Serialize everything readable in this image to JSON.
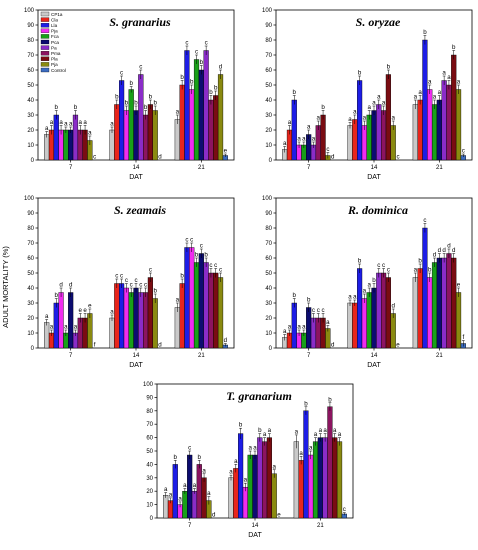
{
  "figure": {
    "y_axis_label": "ADULT MORTALITY (%)"
  },
  "legend_entries": [
    {
      "name": "CP1a",
      "color": "#c9c9c9"
    },
    {
      "name": "Cla",
      "color": "#e8251c"
    },
    {
      "name": "Lla",
      "color": "#1d1de6"
    },
    {
      "name": "Pja",
      "color": "#f02cf0"
    },
    {
      "name": "Fca",
      "color": "#18a018"
    },
    {
      "name": "Pca",
      "color": "#0c0c70"
    },
    {
      "name": "Pa",
      "color": "#8a2cc8"
    },
    {
      "name": "Pma",
      "color": "#8c1460"
    },
    {
      "name": "Pla",
      "color": "#7a0c12"
    },
    {
      "name": "Pja",
      "color": "#8a8a10"
    },
    {
      "name": "Control",
      "color": "#3c6cc0"
    }
  ],
  "chart_data": [
    {
      "type": "bar",
      "title": "S. granarius",
      "xlabel": "DAT",
      "ylabel": "",
      "categories": [
        "7",
        "14",
        "21"
      ],
      "ylim": [
        0,
        100
      ],
      "yticks": [
        0,
        10,
        20,
        30,
        40,
        50,
        60,
        70,
        80,
        90,
        100
      ],
      "values": [
        [
          17,
          20,
          30,
          20,
          20,
          20,
          30,
          20,
          20,
          13,
          0
        ],
        [
          20,
          37,
          53,
          33,
          47,
          33,
          57,
          30,
          37,
          33,
          0
        ],
        [
          27,
          50,
          73,
          47,
          67,
          60,
          73,
          40,
          43,
          57,
          3
        ]
      ],
      "errors": [
        [
          2,
          3,
          3,
          3,
          2,
          2,
          3,
          3,
          3,
          3,
          0
        ],
        [
          2,
          3,
          3,
          3,
          2,
          3,
          3,
          3,
          3,
          3,
          0
        ],
        [
          3,
          3,
          3,
          3,
          3,
          3,
          3,
          3,
          3,
          3,
          1
        ]
      ],
      "letters": [
        [
          "a",
          "a",
          "b",
          "a",
          "a",
          "a",
          "b",
          "a",
          "a",
          "a",
          "c"
        ],
        [
          "a",
          "b",
          "c",
          "b",
          "b",
          "b",
          "c",
          "b",
          "b",
          "b",
          "d"
        ],
        [
          "a",
          "b",
          "c",
          "b",
          "c",
          "b",
          "c",
          "b",
          "b",
          "d",
          "e"
        ]
      ]
    },
    {
      "type": "bar",
      "title": "S. oryzae",
      "xlabel": "DAT",
      "ylabel": "",
      "categories": [
        "7",
        "14",
        "21"
      ],
      "ylim": [
        0,
        100
      ],
      "yticks": [
        0,
        10,
        20,
        30,
        40,
        50,
        60,
        70,
        80,
        90,
        100
      ],
      "values": [
        [
          7,
          20,
          40,
          10,
          10,
          17,
          10,
          23,
          30,
          3,
          0
        ],
        [
          23,
          27,
          53,
          23,
          30,
          33,
          37,
          33,
          57,
          23,
          0
        ],
        [
          37,
          40,
          80,
          47,
          37,
          40,
          53,
          50,
          70,
          47,
          3
        ]
      ],
      "errors": [
        [
          2,
          3,
          3,
          2,
          2,
          3,
          2,
          3,
          3,
          2,
          0
        ],
        [
          2,
          3,
          3,
          3,
          3,
          3,
          3,
          3,
          3,
          3,
          0
        ],
        [
          3,
          3,
          3,
          3,
          3,
          3,
          3,
          3,
          3,
          3,
          1
        ]
      ],
      "letters": [
        [
          "a",
          "a",
          "b",
          "a",
          "a",
          "a",
          "a",
          "a",
          "b",
          "c",
          "d"
        ],
        [
          "a",
          "a",
          "b",
          "a",
          "a",
          "a",
          "a",
          "a",
          "b",
          "a",
          "c"
        ],
        [
          "a",
          "a",
          "b",
          "a",
          "a",
          "a",
          "a",
          "a",
          "b",
          "a",
          "c"
        ]
      ]
    },
    {
      "type": "bar",
      "title": "S. zeamais",
      "xlabel": "DAT",
      "ylabel": "",
      "categories": [
        "7",
        "14",
        "21"
      ],
      "ylim": [
        0,
        100
      ],
      "yticks": [
        0,
        10,
        20,
        30,
        40,
        50,
        60,
        70,
        80,
        90,
        100
      ],
      "values": [
        [
          17,
          10,
          30,
          37,
          10,
          37,
          10,
          20,
          20,
          23,
          0
        ],
        [
          20,
          43,
          43,
          40,
          37,
          40,
          37,
          37,
          47,
          33,
          0
        ],
        [
          27,
          43,
          67,
          67,
          57,
          63,
          57,
          50,
          50,
          47,
          2
        ]
      ],
      "errors": [
        [
          2,
          2,
          3,
          3,
          2,
          3,
          2,
          3,
          3,
          3,
          0
        ],
        [
          2,
          3,
          3,
          3,
          3,
          3,
          3,
          3,
          3,
          3,
          0
        ],
        [
          3,
          3,
          3,
          3,
          3,
          3,
          3,
          3,
          3,
          3,
          1
        ]
      ],
      "letters": [
        [
          "a",
          "a",
          "b",
          "d",
          "a",
          "d",
          "a",
          "e",
          "e",
          "e",
          "f"
        ],
        [
          "a",
          "c",
          "c",
          "c",
          "c",
          "c",
          "c",
          "c",
          "c",
          "b",
          "d"
        ],
        [
          "a",
          "b",
          "c",
          "c",
          "b",
          "c",
          "b",
          "c",
          "c",
          "c",
          "d"
        ]
      ]
    },
    {
      "type": "bar",
      "title": "R. dominica",
      "xlabel": "DAT",
      "ylabel": "",
      "categories": [
        "7",
        "14",
        "21"
      ],
      "ylim": [
        0,
        100
      ],
      "yticks": [
        0,
        10,
        20,
        30,
        40,
        50,
        60,
        70,
        80,
        90,
        100
      ],
      "values": [
        [
          7,
          10,
          30,
          10,
          10,
          27,
          20,
          20,
          20,
          13,
          0
        ],
        [
          30,
          30,
          53,
          33,
          37,
          40,
          50,
          50,
          47,
          23,
          0
        ],
        [
          47,
          53,
          80,
          47,
          57,
          60,
          60,
          63,
          60,
          37,
          3
        ]
      ],
      "errors": [
        [
          2,
          2,
          3,
          2,
          2,
          3,
          3,
          3,
          3,
          2,
          0
        ],
        [
          2,
          2,
          3,
          3,
          3,
          3,
          3,
          3,
          3,
          3,
          0
        ],
        [
          3,
          3,
          3,
          3,
          3,
          3,
          3,
          3,
          3,
          3,
          2
        ]
      ],
      "letters": [
        [
          "a",
          "a",
          "b",
          "a",
          "a",
          "b",
          "c",
          "c",
          "c",
          "a",
          "d"
        ],
        [
          "a",
          "a",
          "b",
          "a",
          "a",
          "b",
          "c",
          "c",
          "c",
          "d",
          "e"
        ],
        [
          "a",
          "b",
          "c",
          "b",
          "d",
          "d",
          "d",
          "d",
          "d",
          "e",
          "f"
        ]
      ]
    },
    {
      "type": "bar",
      "title": "T. granarium",
      "xlabel": "DAT",
      "ylabel": "",
      "categories": [
        "7",
        "14",
        "21"
      ],
      "ylim": [
        0,
        100
      ],
      "yticks": [
        0,
        10,
        20,
        30,
        40,
        50,
        60,
        70,
        80,
        90,
        100
      ],
      "values": [
        [
          17,
          13,
          40,
          10,
          20,
          47,
          20,
          40,
          30,
          13,
          0
        ],
        [
          30,
          37,
          63,
          23,
          47,
          47,
          60,
          57,
          60,
          33,
          0
        ],
        [
          57,
          43,
          80,
          47,
          57,
          60,
          60,
          83,
          60,
          57,
          3
        ]
      ],
      "errors": [
        [
          2,
          2,
          3,
          2,
          2,
          3,
          2,
          3,
          3,
          3,
          0
        ],
        [
          2,
          3,
          4,
          3,
          3,
          3,
          3,
          3,
          3,
          3,
          0
        ],
        [
          5,
          3,
          3,
          3,
          3,
          3,
          3,
          3,
          3,
          3,
          1
        ]
      ],
      "letters": [
        [
          "a",
          "a",
          "b",
          "a",
          "a",
          "c",
          "a",
          "b",
          "a",
          "a",
          "d"
        ],
        [
          "a",
          "a",
          "b",
          "a",
          "a",
          "a",
          "b",
          "a",
          "a",
          "a",
          "e"
        ],
        [
          "a",
          "a",
          "b",
          "a",
          "a",
          "a",
          "a",
          "b",
          "a",
          "a",
          "c"
        ]
      ]
    }
  ]
}
